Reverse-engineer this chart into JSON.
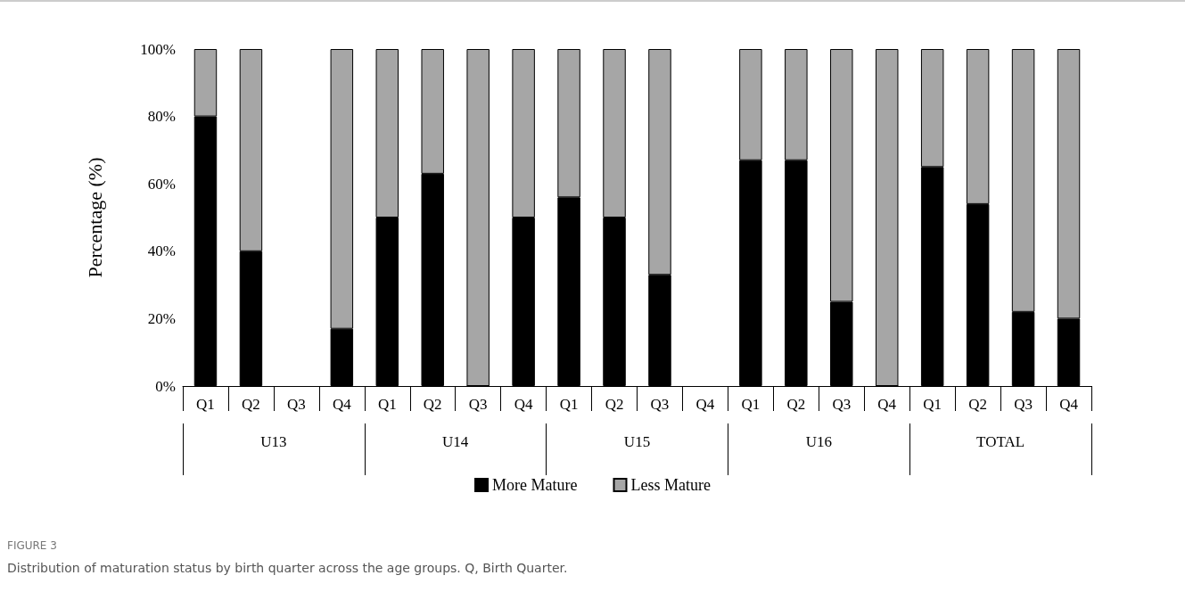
{
  "chart_data": {
    "type": "bar",
    "stacked": true,
    "ylabel": "Percentage (%)",
    "categories": [
      "Q1",
      "Q2",
      "Q3",
      "Q4",
      "Q1",
      "Q2",
      "Q3",
      "Q4",
      "Q1",
      "Q2",
      "Q3",
      "Q4",
      "Q1",
      "Q2",
      "Q3",
      "Q4",
      "Q1",
      "Q2",
      "Q3",
      "Q4"
    ],
    "series": [
      {
        "name": "More Mature",
        "color": "#000000",
        "values": [
          80,
          40,
          null,
          17,
          50,
          63,
          0,
          50,
          56,
          50,
          33,
          null,
          67,
          67,
          25,
          0,
          65,
          54,
          22,
          20
        ]
      },
      {
        "name": "Less Mature",
        "color": "#a6a6a6",
        "values": [
          20,
          60,
          null,
          83,
          50,
          37,
          100,
          50,
          44,
          50,
          67,
          null,
          33,
          33,
          75,
          100,
          35,
          46,
          78,
          80
        ]
      }
    ],
    "ylim": [
      0,
      100
    ],
    "yticks": [
      {
        "value": 0,
        "label": "0%"
      },
      {
        "value": 20,
        "label": "20%"
      },
      {
        "value": 40,
        "label": "40%"
      },
      {
        "value": 60,
        "label": "60%"
      },
      {
        "value": 80,
        "label": "80%"
      },
      {
        "value": 100,
        "label": "100%"
      }
    ],
    "grid": false,
    "legend": "bottom",
    "annotations": [
      "U13",
      "U14",
      "U15",
      "U16",
      "TOTAL",
      "FIGURE 3",
      "Distribution of maturation status by birth quarter across the age groups. Q, Birth Quarter."
    ]
  }
}
